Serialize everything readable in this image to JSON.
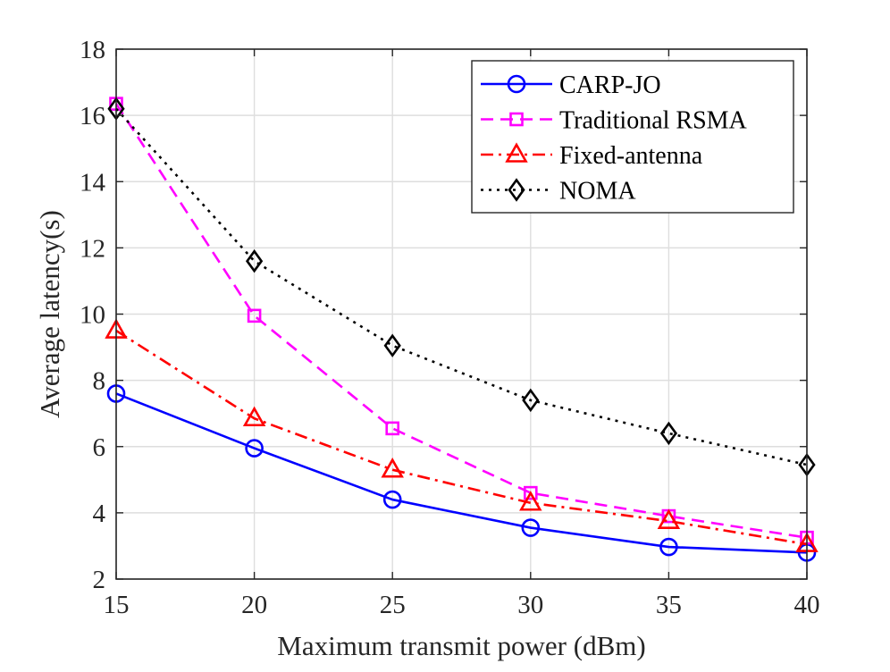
{
  "chart_data": {
    "type": "line",
    "title": "",
    "xlabel": "Maximum transmit power (dBm)",
    "ylabel": "Average latency(s)",
    "xlim": [
      15,
      40
    ],
    "ylim": [
      2,
      18
    ],
    "x": [
      15,
      20,
      25,
      30,
      35,
      40
    ],
    "xticks": [
      15,
      20,
      25,
      30,
      35,
      40
    ],
    "yticks": [
      2,
      4,
      6,
      8,
      10,
      12,
      14,
      16,
      18
    ],
    "grid": true,
    "legend_position": "top-right",
    "series": [
      {
        "name": "CARP-JO",
        "values": [
          7.6,
          5.95,
          4.4,
          3.55,
          2.97,
          2.8
        ],
        "color": "#0000ff",
        "dash": "solid",
        "marker": "circle"
      },
      {
        "name": "Traditional RSMA",
        "values": [
          16.35,
          9.95,
          6.55,
          4.6,
          3.9,
          3.25
        ],
        "color": "#ff00ff",
        "dash": "dashed",
        "marker": "square"
      },
      {
        "name": "Fixed-antenna",
        "values": [
          9.5,
          6.85,
          5.3,
          4.3,
          3.75,
          3.05
        ],
        "color": "#ff0000",
        "dash": "dashdot",
        "marker": "triangle"
      },
      {
        "name": "NOMA",
        "values": [
          16.2,
          11.6,
          9.05,
          7.4,
          6.4,
          5.45
        ],
        "color": "#000000",
        "dash": "dotted",
        "marker": "diamond"
      }
    ]
  }
}
